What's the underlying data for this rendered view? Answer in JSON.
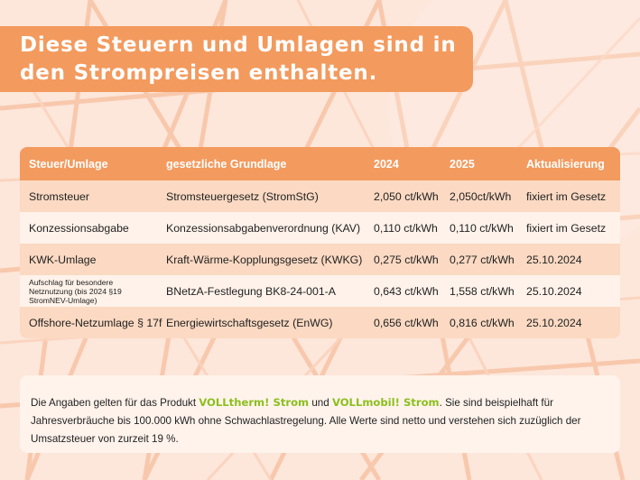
{
  "title": {
    "line1": "Diese Steuern und Umlagen sind in",
    "line2": "den Strompreisen enthalten."
  },
  "table": {
    "headers": [
      "Steuer/Umlage",
      "gesetzliche Grundlage",
      "2024",
      "2025",
      "Aktualisierung"
    ],
    "rows": [
      [
        "Stromsteuer",
        "Stromsteuergesetz (StromStG)",
        "2,050 ct/kWh",
        "2,050ct/kWh",
        "fixiert im Gesetz"
      ],
      [
        "Konzessionsabgabe",
        "Konzessionsabgabenverordnung (KAV)",
        "0,110 ct/kWh",
        "0,110 ct/kWh",
        "fixiert im Gesetz"
      ],
      [
        "KWK-Umlage",
        "Kraft-Wärme-Kopplungsgesetz (KWKG)",
        "0,275 ct/kWh",
        "0,277 ct/kWh",
        "25.10.2024"
      ],
      [
        "Aufschlag für besondere Netznutzung (bis 2024 §19 StromNEV-Umlage)",
        "BNetzA-Festlegung BK8-24-001-A",
        "0,643 ct/kWh",
        "1,558 ct/kWh",
        "25.10.2024"
      ],
      [
        "Offshore-Netzumlage § 17f",
        "Energiewirtschaftsgesetz (EnWG)",
        "0,656 ct/kWh",
        "0,816 ct/kWh",
        "25.10.2024"
      ]
    ]
  },
  "note": {
    "text1": "Die Angaben gelten für das Produkt ",
    "product1_a": "VOLLtherm!",
    "product1_b": " Strom",
    "text2": " und ",
    "product2_a": "VOLLmobil!",
    "product2_b": " Strom",
    "text3": ". Sie sind beispielhaft für Jahresverbräuche bis 100.000 kWh ohne Schwachlastregelung. Alle Werte sind netto und verstehen sich zuzüglich der Umsatzsteuer von zurzeit 19 %."
  },
  "colors": {
    "accent": "#f39a5e",
    "row_dark": "#fbd9c2",
    "row_light": "#fff2ea",
    "brand_green": "#8bbf1e",
    "brand_orange": "#f29254"
  }
}
